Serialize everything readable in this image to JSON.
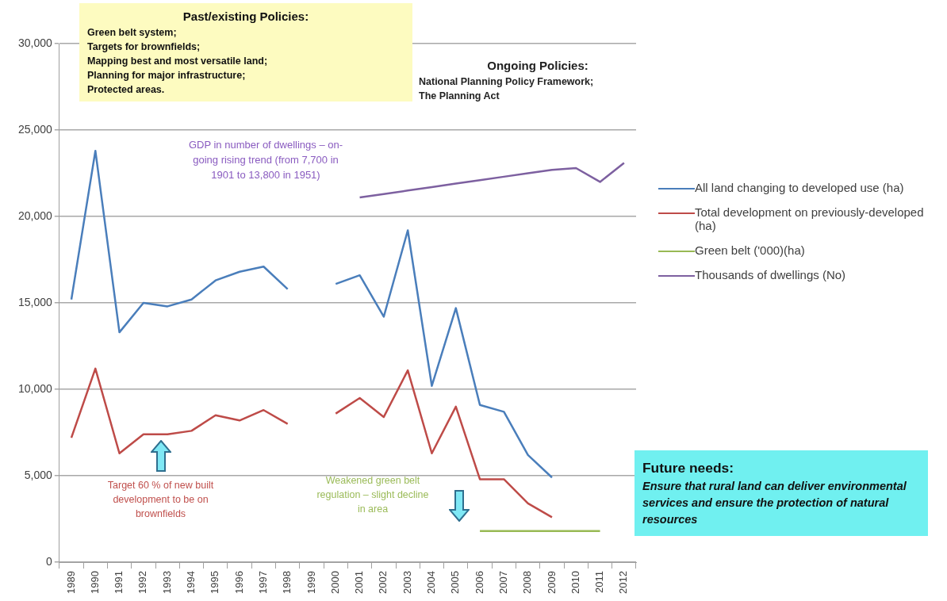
{
  "chart_data": {
    "type": "line",
    "categories": [
      "1989",
      "1990",
      "1991",
      "1992",
      "1993",
      "1994",
      "1995",
      "1996",
      "1997",
      "1998",
      "1999",
      "2000",
      "2001",
      "2002",
      "2003",
      "2004",
      "2005",
      "2006",
      "2007",
      "2008",
      "2009",
      "2010",
      "2011",
      "2012"
    ],
    "series": [
      {
        "name": "All land changing to developed use (ha)",
        "color": "#4a7ebb",
        "values": [
          15200,
          23800,
          13300,
          15000,
          14800,
          15200,
          16300,
          16800,
          17100,
          15800,
          null,
          16100,
          16600,
          14200,
          19200,
          10200,
          14700,
          9100,
          8700,
          6200,
          4900,
          null,
          null,
          null
        ]
      },
      {
        "name": "Total development on previously-developed (ha)",
        "color": "#be4b48",
        "values": [
          7200,
          11200,
          6300,
          7400,
          7400,
          7600,
          8500,
          8200,
          8800,
          8000,
          null,
          8600,
          9500,
          8400,
          11100,
          6300,
          9000,
          4800,
          4800,
          3400,
          2600,
          null,
          null,
          null
        ]
      },
      {
        "name": "Green belt ('000)(ha)",
        "color": "#98b954",
        "values": [
          null,
          null,
          null,
          null,
          null,
          null,
          null,
          null,
          null,
          null,
          null,
          null,
          null,
          null,
          null,
          null,
          null,
          1800,
          1800,
          1800,
          1800,
          1800,
          1800,
          null
        ]
      },
      {
        "name": "Thousands of dwellings (No)",
        "color": "#7d60a0",
        "values": [
          null,
          null,
          null,
          null,
          null,
          null,
          null,
          null,
          null,
          null,
          null,
          null,
          21100,
          21300,
          21500,
          21700,
          21900,
          22100,
          22300,
          22500,
          22700,
          22800,
          22000,
          23100
        ]
      }
    ],
    "ylim": [
      0,
      30000
    ],
    "yticks": [
      {
        "value": 0,
        "label": "0"
      },
      {
        "value": 5000,
        "label": "5,000"
      },
      {
        "value": 10000,
        "label": "10,000"
      },
      {
        "value": 15000,
        "label": "15,000"
      },
      {
        "value": 20000,
        "label": "20,000"
      },
      {
        "value": 25000,
        "label": "25,000"
      },
      {
        "value": 30000,
        "label": "30,000"
      }
    ],
    "grid": "y",
    "legend": "right",
    "marker": "none",
    "line_style": "solid",
    "annotations": [
      "Past/existing Policies:\nGreen belt system;\nTargets for brownfields;\nMapping best and most versatile land;\nPlanning for major infrastructure;\nProtected areas.",
      "Ongoing Policies:\nNational Planning Policy Framework;\nThe Planning Act",
      "GDP in number of dwellings – on-going rising trend (from 7,700 in 1901 to 13,800 in 1951)",
      "Target 60 % of new built development to be on brownfields",
      "Weakened green belt regulation – slight decline in area",
      "Future needs:\nEnsure that rural land can deliver environmental services and ensure the protection of natural resources"
    ]
  }
}
